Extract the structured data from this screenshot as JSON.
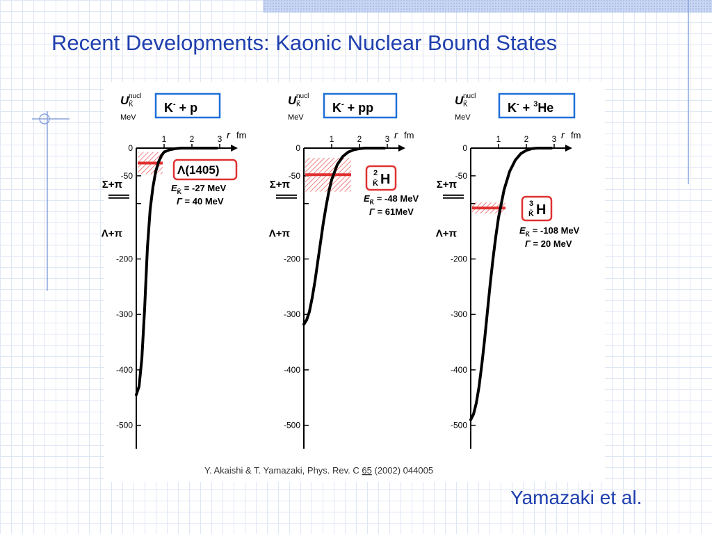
{
  "slide": {
    "title": "Recent Developments: Kaonic Nuclear Bound States",
    "footer": "Yamazaki et al.",
    "citation": {
      "pre": "Y. Akaishi & T. Yamazaki, Phys. Rev. C ",
      "vol": "65",
      "post": " (2002) 044005"
    }
  },
  "colors": {
    "title": "#1f3fae",
    "box_border": "#1e6fd9",
    "state_red": "#e03030",
    "hatch_red": "#f08080",
    "curve": "#000000",
    "grid_line": "#dfe6f5"
  },
  "chart_data": [
    {
      "type": "line",
      "system_label": {
        "base": "K",
        "sup": "-",
        "rest": " + p"
      },
      "ylabel": {
        "base": "U",
        "sub": "K̄",
        "sup": "nucl",
        "unit": "MeV"
      },
      "xlabel": {
        "var": "r",
        "unit": "fm"
      },
      "x_ticks": [
        "1",
        "2",
        "3"
      ],
      "y_ticks": [
        "0",
        "-50",
        "-200",
        "-300",
        "-400",
        "-500"
      ],
      "xlim": [
        0,
        3.4
      ],
      "ylim": [
        -520,
        0
      ],
      "threshold_labels": [
        {
          "text": "Σ+π",
          "y": -75,
          "double_line": true
        },
        {
          "text": "Λ+π",
          "y": -160,
          "double_line": false
        }
      ],
      "curve": {
        "x": [
          0.0,
          0.1,
          0.2,
          0.3,
          0.4,
          0.5,
          0.6,
          0.7,
          0.8,
          0.9,
          1.0,
          1.2,
          1.4,
          1.6,
          1.8
        ],
        "y": [
          -445,
          -430,
          -380,
          -290,
          -180,
          -110,
          -70,
          -42,
          -25,
          -14,
          -7,
          -3,
          -1,
          0,
          0
        ]
      },
      "state": {
        "energy": -27,
        "width": 40,
        "label": "Λ(1405)",
        "energy_line": {
          "pre": "E",
          "sub": "K̄",
          "post": " = -27 MeV"
        },
        "width_line": {
          "pre": "Γ",
          "post": " = 40 MeV"
        }
      }
    },
    {
      "type": "line",
      "system_label": {
        "base": "K",
        "sup": "-",
        "rest": " + pp"
      },
      "ylabel": {
        "base": "U",
        "sub": "K̄",
        "sup": "nucl",
        "unit": "MeV"
      },
      "xlabel": {
        "var": "r",
        "unit": "fm"
      },
      "x_ticks": [
        "1",
        "2",
        "3"
      ],
      "y_ticks": [
        "0",
        "-50",
        "-200",
        "-300",
        "-400",
        "-500"
      ],
      "xlim": [
        0,
        3.4
      ],
      "ylim": [
        -520,
        0
      ],
      "threshold_labels": [
        {
          "text": "Σ+π",
          "y": -75,
          "double_line": true
        },
        {
          "text": "Λ+π",
          "y": -160,
          "double_line": false
        }
      ],
      "curve": {
        "x": [
          0.0,
          0.1,
          0.2,
          0.3,
          0.4,
          0.5,
          0.6,
          0.7,
          0.8,
          0.9,
          1.0,
          1.2,
          1.4,
          1.6,
          1.8,
          2.0,
          2.2,
          2.4
        ],
        "y": [
          -318,
          -310,
          -295,
          -270,
          -240,
          -205,
          -170,
          -135,
          -105,
          -78,
          -57,
          -30,
          -15,
          -7,
          -3,
          -1,
          0,
          0
        ]
      },
      "state": {
        "energy": -48,
        "width": 61,
        "label_sup": "2",
        "label_sub": "K̄",
        "label_main": "H",
        "energy_line": {
          "pre": "E",
          "sub": "K̄",
          "post": " = -48 MeV"
        },
        "width_line": {
          "pre": "Γ",
          "post": " = 61MeV"
        }
      }
    },
    {
      "type": "line",
      "system_label": {
        "base": "K",
        "sup": "-",
        "mid": " + ",
        "sup2": "3",
        "rest": "He"
      },
      "ylabel": {
        "base": "U",
        "sub": "K̄",
        "sup": "nucl",
        "unit": "MeV"
      },
      "xlabel": {
        "var": "r",
        "unit": "fm"
      },
      "x_ticks": [
        "1",
        "2",
        "3"
      ],
      "y_ticks": [
        "0",
        "-50",
        "-200",
        "-300",
        "-400",
        "-500"
      ],
      "xlim": [
        0,
        3.4
      ],
      "ylim": [
        -520,
        0
      ],
      "threshold_labels": [
        {
          "text": "Σ+π",
          "y": -75,
          "double_line": true
        },
        {
          "text": "Λ+π",
          "y": -160,
          "double_line": false
        }
      ],
      "curve": {
        "x": [
          0.0,
          0.1,
          0.2,
          0.3,
          0.4,
          0.5,
          0.6,
          0.7,
          0.8,
          0.9,
          1.0,
          1.2,
          1.4,
          1.6,
          1.8,
          2.0,
          2.2,
          2.4,
          2.6
        ],
        "y": [
          -490,
          -480,
          -460,
          -430,
          -390,
          -345,
          -295,
          -245,
          -200,
          -160,
          -125,
          -75,
          -42,
          -22,
          -10,
          -4,
          -1,
          0,
          0
        ]
      },
      "state": {
        "energy": -108,
        "width": 20,
        "label_sup": "3",
        "label_sub": "K̄",
        "label_main": "H",
        "energy_line": {
          "pre": "E",
          "sub": "K̄",
          "post": " = -108 MeV"
        },
        "width_line": {
          "pre": "Γ",
          "post": " = 20 MeV"
        }
      }
    }
  ]
}
